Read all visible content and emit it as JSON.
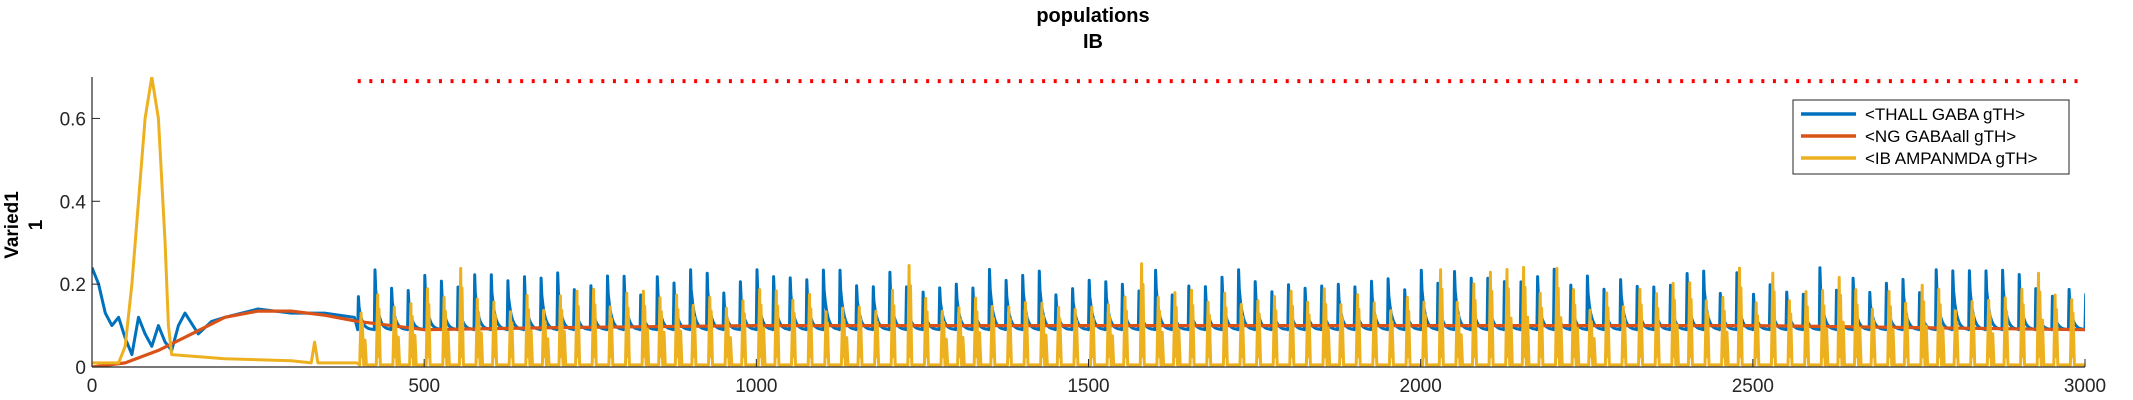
{
  "chart_data": {
    "type": "line",
    "title": "populations",
    "subtitle": "IB",
    "ylabel": "Varied1",
    "ylabel_sub": "1",
    "xlabel": "",
    "xlim": [
      0,
      3000
    ],
    "ylim": [
      0,
      0.7
    ],
    "x_ticks": [
      "0",
      "500",
      "1000",
      "1500",
      "2000",
      "2500",
      "3000"
    ],
    "y_ticks": [
      "0",
      "0.2",
      "0.4",
      "0.6"
    ],
    "grid": false,
    "legend_position": "top-right",
    "stimulus_marker": {
      "color": "#ff0000",
      "x_start": 400,
      "x_end": 3000,
      "y": 0.69
    },
    "series": [
      {
        "name": "<THALL GABA gTH>",
        "color": "#0072BD",
        "style": "spiking",
        "early": [
          [
            0,
            0.24
          ],
          [
            10,
            0.2
          ],
          [
            20,
            0.13
          ],
          [
            30,
            0.1
          ],
          [
            40,
            0.12
          ],
          [
            50,
            0.07
          ],
          [
            60,
            0.03
          ],
          [
            70,
            0.12
          ],
          [
            80,
            0.08
          ],
          [
            90,
            0.05
          ],
          [
            100,
            0.1
          ],
          [
            110,
            0.06
          ],
          [
            120,
            0.04
          ],
          [
            130,
            0.1
          ],
          [
            140,
            0.13
          ],
          [
            160,
            0.08
          ],
          [
            180,
            0.11
          ],
          [
            200,
            0.12
          ],
          [
            250,
            0.14
          ],
          [
            300,
            0.13
          ],
          [
            350,
            0.13
          ],
          [
            395,
            0.12
          ]
        ],
        "spike_start": 400,
        "spike_period": 25,
        "spike_peak": 0.2,
        "spike_trough": 0.09,
        "decay_tau": 5
      },
      {
        "name": "<NG GABAall gTH>",
        "color": "#D95319",
        "style": "smooth",
        "points": [
          [
            0,
            0
          ],
          [
            50,
            0.01
          ],
          [
            100,
            0.04
          ],
          [
            150,
            0.08
          ],
          [
            200,
            0.12
          ],
          [
            250,
            0.135
          ],
          [
            300,
            0.135
          ],
          [
            350,
            0.125
          ],
          [
            400,
            0.11
          ],
          [
            500,
            0.09
          ],
          [
            700,
            0.095
          ],
          [
            1000,
            0.1
          ],
          [
            2000,
            0.1
          ],
          [
            2500,
            0.1
          ],
          [
            3000,
            0.09
          ]
        ]
      },
      {
        "name": "<IB AMPANMDA gTH>",
        "color": "#EDB120",
        "style": "bursting",
        "early": [
          [
            0,
            0.01
          ],
          [
            40,
            0.01
          ],
          [
            50,
            0.05
          ],
          [
            60,
            0.2
          ],
          [
            70,
            0.4
          ],
          [
            80,
            0.6
          ],
          [
            90,
            0.7
          ],
          [
            100,
            0.6
          ],
          [
            110,
            0.3
          ],
          [
            115,
            0.1
          ],
          [
            120,
            0.03
          ],
          [
            200,
            0.02
          ],
          [
            300,
            0.015
          ],
          [
            330,
            0.01
          ],
          [
            335,
            0.06
          ],
          [
            340,
            0.01
          ],
          [
            398,
            0.01
          ]
        ],
        "burst_start": 400,
        "burst_period": 25,
        "burst_peak_min": 0.13,
        "burst_peak_max": 0.25,
        "burst_floor": 0.005
      }
    ]
  }
}
